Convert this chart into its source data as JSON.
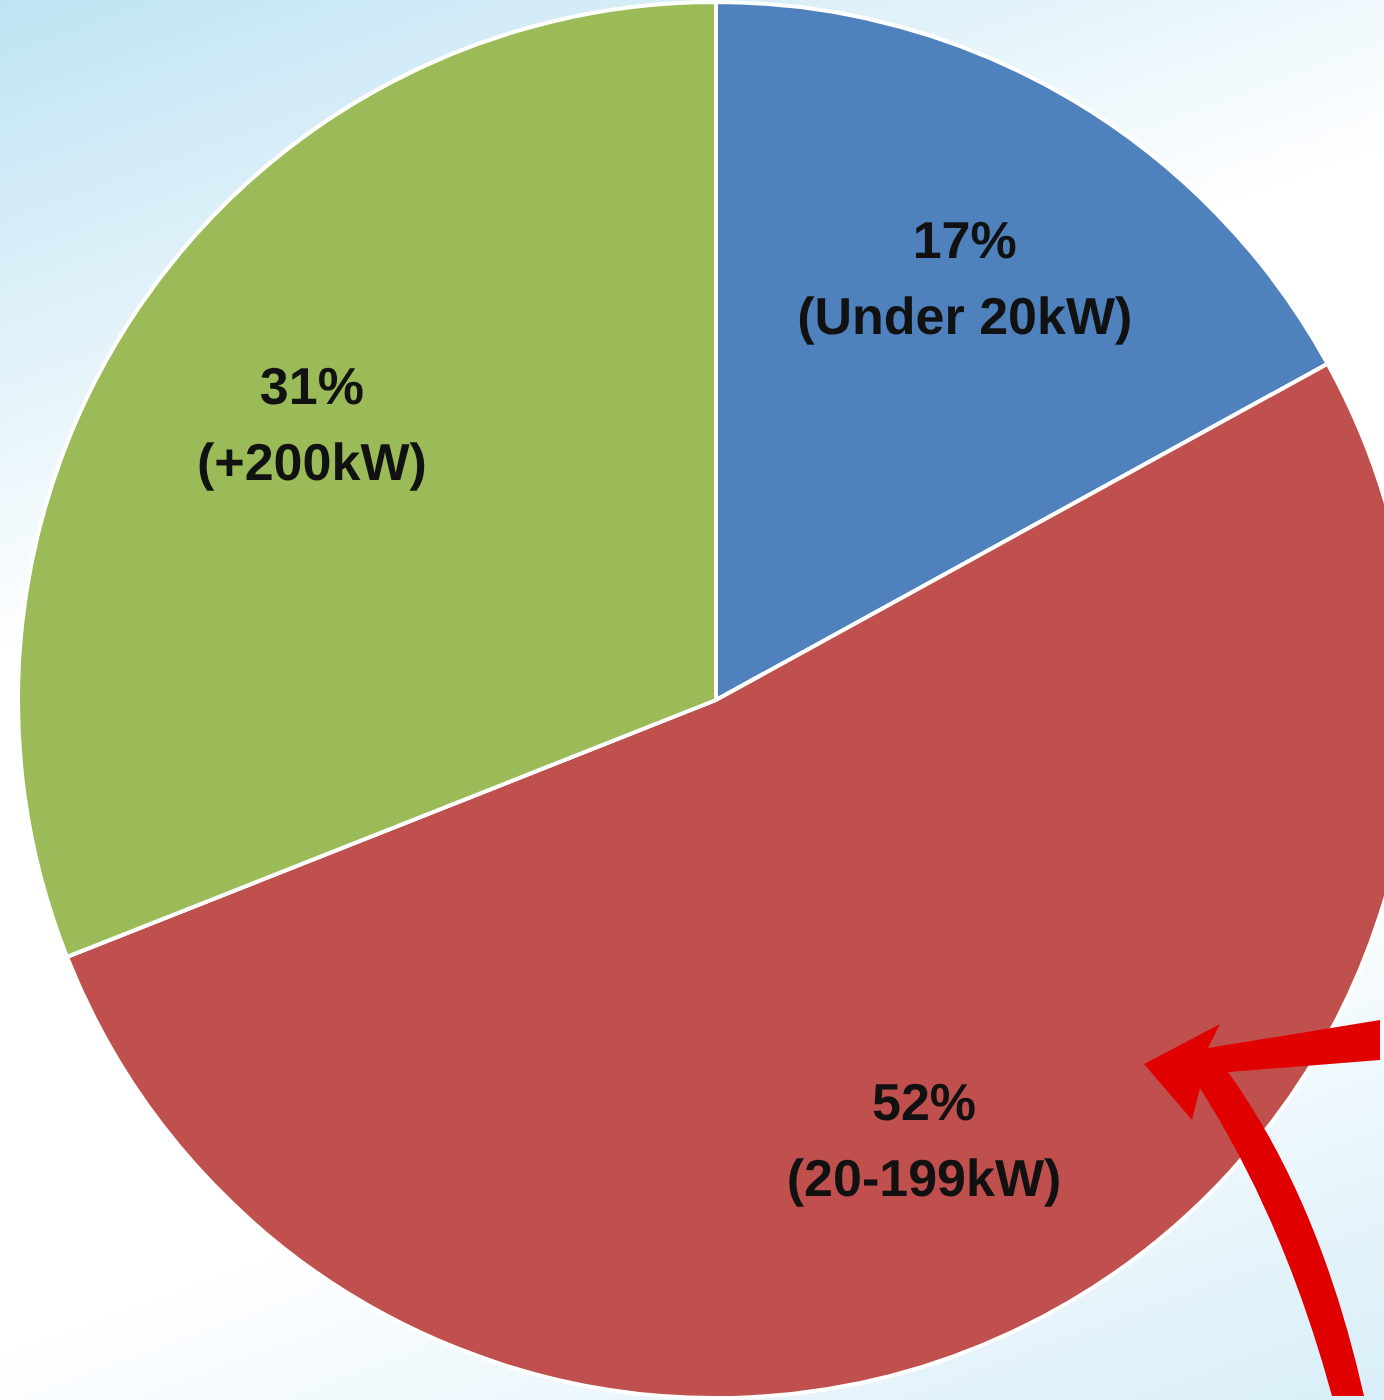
{
  "chart_data": {
    "type": "pie",
    "categories": [
      "(Under 20kW)",
      "(20-199kW)",
      "(+200kW)"
    ],
    "values": [
      17,
      52,
      31
    ],
    "colors": [
      "#4f81bd",
      "#c0504d",
      "#9bbb59"
    ],
    "value_labels": [
      "17%",
      "52%",
      "31%"
    ],
    "legend": false
  }
}
